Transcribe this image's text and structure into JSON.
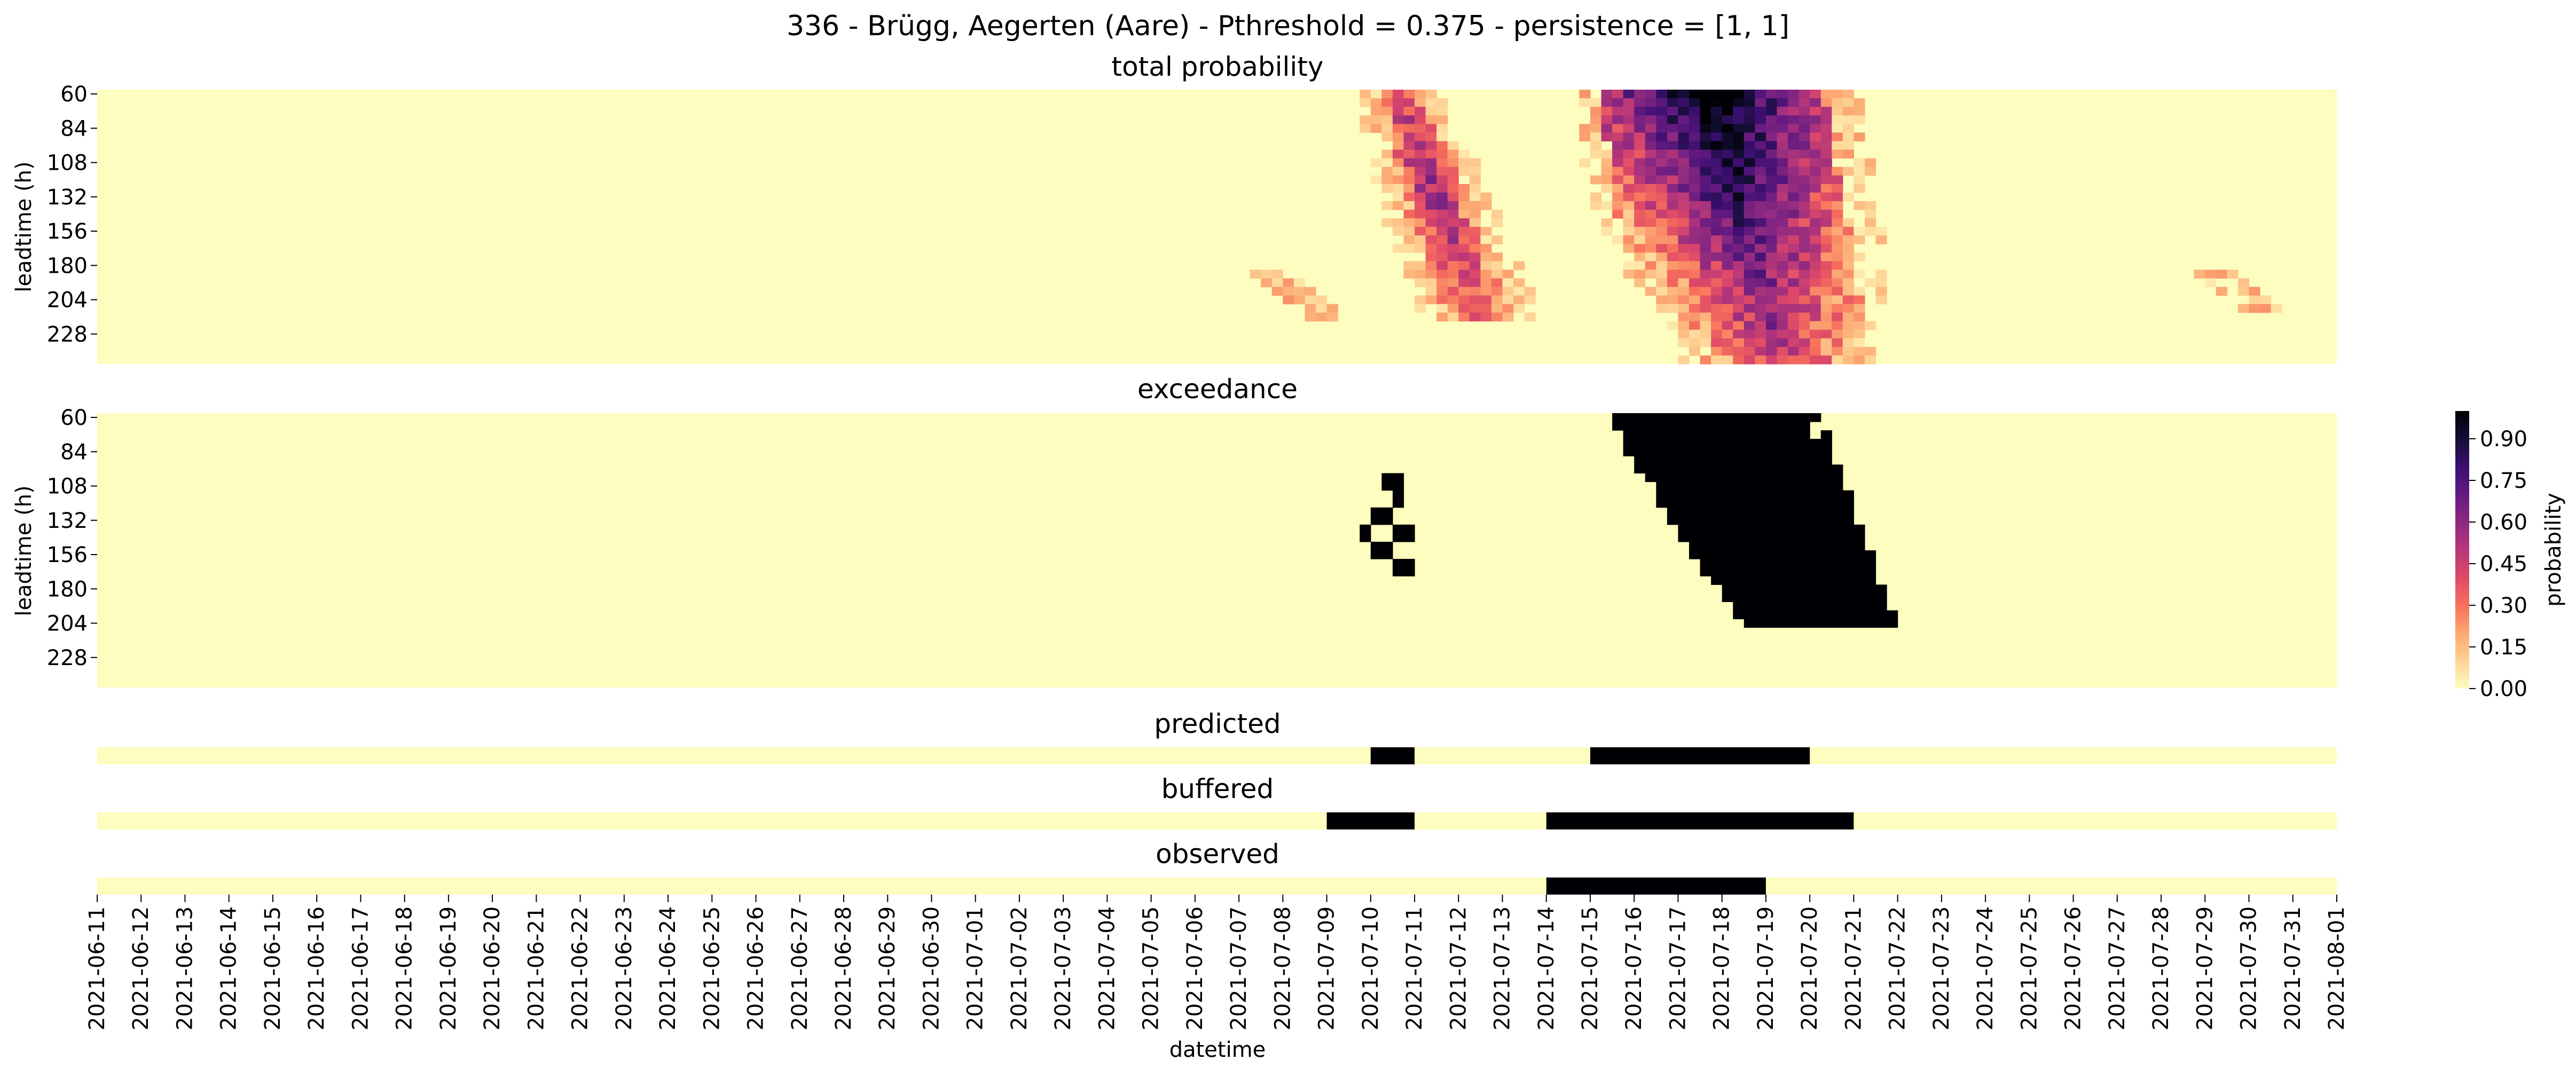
{
  "figure": {
    "title": "336 - Brügg, Aegerten (Aare) - Pthreshold = 0.375 - persistence = [1, 1]"
  },
  "colors": {
    "low": "#fcfdbf",
    "high": "#000004",
    "cmap": [
      "#fcfdbf",
      "#fed395",
      "#fca772",
      "#f7705c",
      "#de4968",
      "#b73779",
      "#8c2981",
      "#641a80",
      "#3b0f70",
      "#140e36",
      "#000004"
    ]
  },
  "chart_data": [
    {
      "type": "heatmap",
      "title": "total probability",
      "ylabel": "leadtime (h)",
      "yticks": [
        "60",
        "84",
        "108",
        "132",
        "156",
        "180",
        "204",
        "228"
      ],
      "x_start": "2021-06-11",
      "x_end": "2021-08-01",
      "ylim": [
        60,
        246
      ],
      "value_range": [
        0,
        1
      ],
      "regions": [
        {
          "name": "event-1",
          "lead_range": [
            60,
            216
          ],
          "date_center_top": "2021-07-10",
          "date_center_bottom": "2021-07-11",
          "peak_probability": 0.55
        },
        {
          "name": "event-2",
          "lead_range": [
            60,
            246
          ],
          "date_center_top": "2021-07-17",
          "date_center_bottom": "2021-07-19",
          "peak_probability": 1.0
        },
        {
          "name": "minor-1",
          "lead_range": [
            186,
            222
          ],
          "date_center": "2021-07-08",
          "peak_probability": 0.12
        },
        {
          "name": "minor-2",
          "lead_range": [
            186,
            216
          ],
          "date_center": "2021-07-29",
          "peak_probability": 0.12
        }
      ]
    },
    {
      "type": "heatmap",
      "title": "exceedance",
      "ylabel": "leadtime (h)",
      "yticks": [
        "60",
        "84",
        "108",
        "132",
        "156",
        "180",
        "204",
        "228"
      ],
      "value_range": [
        0,
        1
      ],
      "regions": [
        {
          "name": "event-1-cells",
          "date_range": [
            "2021-07-10",
            "2021-07-11"
          ],
          "lead_range": [
            108,
            174
          ]
        },
        {
          "name": "event-2-block",
          "date_range": [
            "2021-07-15",
            "2021-07-20"
          ],
          "lead_range": [
            60,
            210
          ]
        }
      ]
    },
    {
      "type": "heatmap",
      "title": "predicted",
      "value_range": [
        0,
        1
      ],
      "events": [
        {
          "start": "2021-07-10",
          "end": "2021-07-11"
        },
        {
          "start": "2021-07-15",
          "end": "2021-07-20"
        }
      ]
    },
    {
      "type": "heatmap",
      "title": "buffered",
      "value_range": [
        0,
        1
      ],
      "events": [
        {
          "start": "2021-07-09",
          "end": "2021-07-11"
        },
        {
          "start": "2021-07-14",
          "end": "2021-07-21"
        }
      ]
    },
    {
      "type": "heatmap",
      "title": "observed",
      "xlabel": "datetime",
      "value_range": [
        0,
        1
      ],
      "events": [
        {
          "start": "2021-07-14",
          "end": "2021-07-19"
        }
      ],
      "xticks": [
        "2021-06-11",
        "2021-06-12",
        "2021-06-13",
        "2021-06-14",
        "2021-06-15",
        "2021-06-16",
        "2021-06-17",
        "2021-06-18",
        "2021-06-19",
        "2021-06-20",
        "2021-06-21",
        "2021-06-22",
        "2021-06-23",
        "2021-06-24",
        "2021-06-25",
        "2021-06-26",
        "2021-06-27",
        "2021-06-28",
        "2021-06-29",
        "2021-06-30",
        "2021-07-01",
        "2021-07-02",
        "2021-07-03",
        "2021-07-04",
        "2021-07-05",
        "2021-07-06",
        "2021-07-07",
        "2021-07-08",
        "2021-07-09",
        "2021-07-10",
        "2021-07-11",
        "2021-07-12",
        "2021-07-13",
        "2021-07-14",
        "2021-07-15",
        "2021-07-16",
        "2021-07-17",
        "2021-07-18",
        "2021-07-19",
        "2021-07-20",
        "2021-07-21",
        "2021-07-22",
        "2021-07-23",
        "2021-07-24",
        "2021-07-25",
        "2021-07-26",
        "2021-07-27",
        "2021-07-28",
        "2021-07-29",
        "2021-07-30",
        "2021-07-31",
        "2021-08-01"
      ]
    }
  ],
  "colorbar": {
    "label": "probability",
    "ticks": [
      "0.00",
      "0.15",
      "0.30",
      "0.45",
      "0.60",
      "0.75",
      "0.90"
    ],
    "range": [
      0,
      1
    ]
  }
}
